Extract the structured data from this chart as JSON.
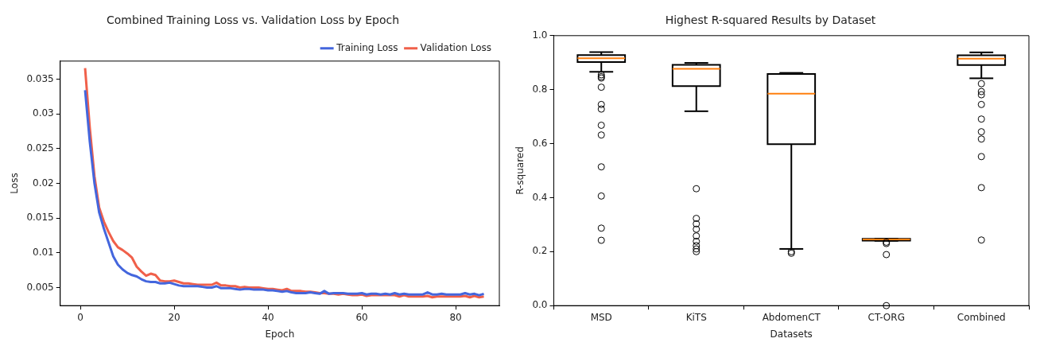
{
  "chart_data": [
    {
      "type": "line",
      "title": "Combined Training Loss vs. Validation Loss by Epoch",
      "xlabel": "Epoch",
      "ylabel": "Loss",
      "legend": "top right",
      "grid": false,
      "x": [
        1,
        2,
        3,
        4,
        5,
        6,
        7,
        8,
        9,
        10,
        11,
        12,
        13,
        14,
        15,
        16,
        17,
        18,
        19,
        20,
        21,
        22,
        23,
        24,
        25,
        26,
        27,
        28,
        29,
        30,
        31,
        32,
        33,
        34,
        35,
        36,
        37,
        38,
        39,
        40,
        41,
        42,
        43,
        44,
        45,
        46,
        47,
        48,
        49,
        50,
        51,
        52,
        53,
        54,
        55,
        56,
        57,
        58,
        59,
        60,
        61,
        62,
        63,
        64,
        65,
        66,
        67,
        68,
        69,
        70,
        71,
        72,
        73,
        74,
        75,
        76,
        77,
        78,
        79,
        80,
        81,
        82,
        83,
        84,
        85,
        86
      ],
      "xlim": [
        -4.3,
        89.3
      ],
      "xticks": [
        0,
        20,
        40,
        60,
        80
      ],
      "ylim": [
        0.0024,
        0.0376
      ],
      "yticks": [
        0.005,
        0.01,
        0.015,
        0.02,
        0.025,
        0.03,
        0.035
      ],
      "series": [
        {
          "name": "Training Loss",
          "color": "#4466dd",
          "values": [
            0.0334,
            0.026,
            0.02,
            0.0158,
            0.0135,
            0.0115,
            0.0095,
            0.0083,
            0.0076,
            0.0071,
            0.0068,
            0.0066,
            0.0062,
            0.0059,
            0.0058,
            0.0058,
            0.0056,
            0.0056,
            0.0057,
            0.0055,
            0.0053,
            0.0052,
            0.0052,
            0.0052,
            0.0052,
            0.0051,
            0.005,
            0.005,
            0.0052,
            0.0049,
            0.0049,
            0.0049,
            0.0048,
            0.0047,
            0.0048,
            0.0048,
            0.0047,
            0.0047,
            0.0047,
            0.0046,
            0.0046,
            0.0045,
            0.0044,
            0.0045,
            0.0043,
            0.0042,
            0.0042,
            0.0042,
            0.0043,
            0.0042,
            0.0041,
            0.0045,
            0.0041,
            0.0042,
            0.0042,
            0.0042,
            0.0041,
            0.0041,
            0.0041,
            0.0042,
            0.004,
            0.0041,
            0.0041,
            0.004,
            0.0041,
            0.004,
            0.0042,
            0.004,
            0.0041,
            0.004,
            0.004,
            0.004,
            0.004,
            0.0043,
            0.004,
            0.004,
            0.0041,
            0.004,
            0.004,
            0.004,
            0.004,
            0.0042,
            0.004,
            0.0041,
            0.0039,
            0.0041
          ]
        },
        {
          "name": "Validation Loss",
          "color": "#f0604a",
          "values": [
            0.0366,
            0.028,
            0.021,
            0.0165,
            0.0145,
            0.013,
            0.0117,
            0.0108,
            0.0104,
            0.0099,
            0.0093,
            0.008,
            0.0073,
            0.0067,
            0.007,
            0.0068,
            0.006,
            0.0059,
            0.0059,
            0.006,
            0.0058,
            0.0056,
            0.0056,
            0.0055,
            0.0054,
            0.0054,
            0.0054,
            0.0054,
            0.0057,
            0.0053,
            0.0053,
            0.0052,
            0.0052,
            0.005,
            0.0051,
            0.005,
            0.005,
            0.005,
            0.0049,
            0.0048,
            0.0048,
            0.0047,
            0.0046,
            0.0048,
            0.0045,
            0.0045,
            0.0045,
            0.0044,
            0.0044,
            0.0043,
            0.0042,
            0.0042,
            0.0041,
            0.0041,
            0.004,
            0.0041,
            0.004,
            0.0039,
            0.0039,
            0.004,
            0.0038,
            0.0039,
            0.0039,
            0.0039,
            0.0039,
            0.0039,
            0.0039,
            0.0037,
            0.0039,
            0.0037,
            0.0037,
            0.0037,
            0.0037,
            0.0038,
            0.0036,
            0.0037,
            0.0037,
            0.0037,
            0.0037,
            0.0037,
            0.0037,
            0.0038,
            0.0036,
            0.0038,
            0.0036,
            0.0037
          ]
        }
      ]
    },
    {
      "type": "box",
      "title": "Highest R-squared Results by Dataset",
      "xlabel": "Datasets",
      "ylabel": "R-squared",
      "grid": false,
      "categories": [
        "MSD",
        "KiTS",
        "AbdomenCT",
        "CT-ORG",
        "Combined"
      ],
      "ylim": [
        0,
        1
      ],
      "yticks": [
        {
          "value": 0,
          "label": "0.0"
        },
        0.2,
        0.4,
        0.6,
        0.8,
        {
          "value": 1,
          "label": "1.0"
        }
      ],
      "boxes": [
        {
          "low": 0.866,
          "q1": 0.902,
          "median": 0.916,
          "q3": 0.928,
          "high": 0.939,
          "outliers": [
            0.855,
            0.848,
            0.843,
            0.809,
            0.745,
            0.728,
            0.668,
            0.632,
            0.514,
            0.406,
            0.287,
            0.242
          ]
        },
        {
          "low": 0.72,
          "q1": 0.813,
          "median": 0.877,
          "q3": 0.892,
          "high": 0.899,
          "outliers": [
            0.433,
            0.323,
            0.303,
            0.283,
            0.258,
            0.238,
            0.222,
            0.21,
            0.2
          ]
        },
        {
          "low": 0.21,
          "q1": 0.598,
          "median": 0.785,
          "q3": 0.858,
          "high": 0.862,
          "outliers": [
            0.2,
            0.194
          ]
        },
        {
          "low": 0.24,
          "q1": 0.241,
          "median": 0.245,
          "q3": 0.247,
          "high": 0.248,
          "outliers": [
            0.235,
            0.23,
            0.189,
            0
          ]
        },
        {
          "low": 0.842,
          "q1": 0.891,
          "median": 0.915,
          "q3": 0.927,
          "high": 0.938,
          "outliers": [
            0.822,
            0.793,
            0.781,
            0.745,
            0.691,
            0.644,
            0.617,
            0.552,
            0.437,
            0.243
          ]
        }
      ]
    }
  ]
}
